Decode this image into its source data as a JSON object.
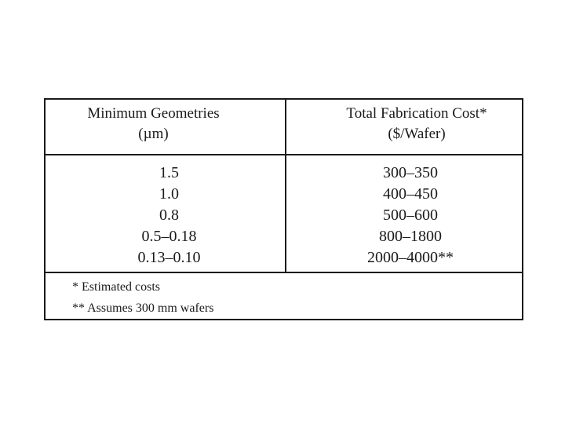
{
  "table": {
    "headers": {
      "geometry": {
        "line1": "Minimum Geometries",
        "line2": "(µm)"
      },
      "cost": {
        "line1": "Total Fabrication Cost*",
        "line2": "($/Wafer)"
      }
    },
    "rows": [
      {
        "geometry": "1.5",
        "cost": "300–350"
      },
      {
        "geometry": "1.0",
        "cost": "400–450"
      },
      {
        "geometry": "0.8",
        "cost": "500–600"
      },
      {
        "geometry": "0.5–0.18",
        "cost": "800–1800"
      },
      {
        "geometry": "0.13–0.10",
        "cost": "2000–4000**"
      }
    ],
    "footnotes": [
      "* Estimated costs",
      "** Assumes 300 mm wafers"
    ]
  }
}
